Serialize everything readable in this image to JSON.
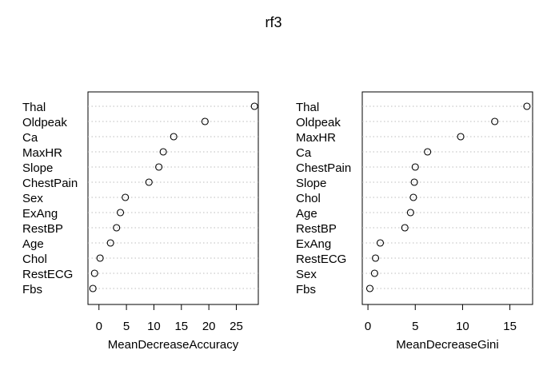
{
  "title": "rf3",
  "chart_data": [
    {
      "type": "scatter",
      "subtype": "dotchart",
      "xlabel": "MeanDecreaseAccuracy",
      "xlim": [
        -2,
        29
      ],
      "xticks": [
        0,
        5,
        10,
        15,
        20,
        25
      ],
      "grid": "dotted-horizontal",
      "categories": [
        "Thal",
        "Oldpeak",
        "Ca",
        "MaxHR",
        "Slope",
        "ChestPain",
        "Sex",
        "ExAng",
        "RestBP",
        "Age",
        "Chol",
        "RestECG",
        "Fbs"
      ],
      "values": [
        28.3,
        19.3,
        13.6,
        11.7,
        10.9,
        9.1,
        4.8,
        3.9,
        3.2,
        2.1,
        0.2,
        -0.8,
        -1.1
      ]
    },
    {
      "type": "scatter",
      "subtype": "dotchart",
      "xlabel": "MeanDecreaseGini",
      "xlim": [
        -0.6,
        17.4
      ],
      "xticks": [
        0,
        5,
        10,
        15
      ],
      "grid": "dotted-horizontal",
      "categories": [
        "Thal",
        "Oldpeak",
        "MaxHR",
        "Ca",
        "ChestPain",
        "Slope",
        "Chol",
        "Age",
        "RestBP",
        "ExAng",
        "RestECG",
        "Sex",
        "Fbs"
      ],
      "values": [
        16.8,
        13.4,
        9.8,
        6.3,
        5.0,
        4.9,
        4.8,
        4.5,
        3.9,
        1.3,
        0.8,
        0.7,
        0.2
      ]
    }
  ]
}
